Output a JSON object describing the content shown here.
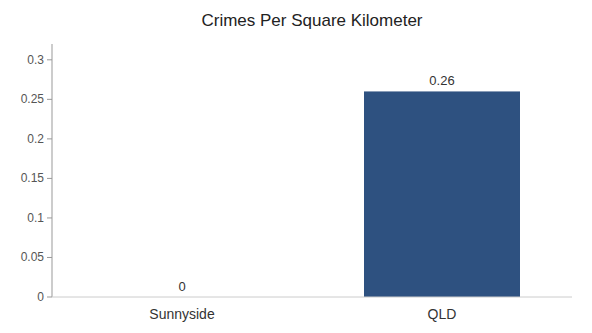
{
  "chart_data": {
    "type": "bar",
    "title": "Crimes Per Square Kilometer",
    "categories": [
      "Sunnyside",
      "QLD"
    ],
    "values": [
      0,
      0.26
    ],
    "colors": [
      "#555555",
      "#2e5180"
    ],
    "ylim": [
      0,
      0.32
    ],
    "yticks": [
      0,
      0.05,
      0.1,
      0.15,
      0.2,
      0.25,
      0.3
    ],
    "data_labels": true,
    "grid": false
  }
}
